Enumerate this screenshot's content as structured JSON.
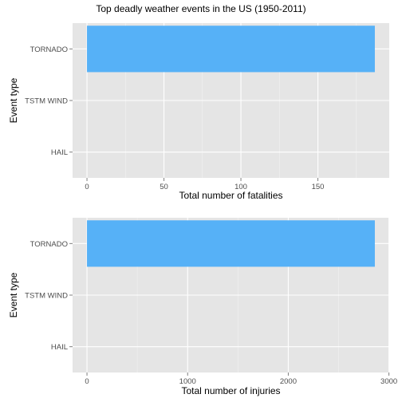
{
  "figure": {
    "title": "Top deadly weather events in the US (1950-2011)"
  },
  "chart_data": [
    {
      "type": "bar",
      "orientation": "horizontal",
      "categories": [
        "TORNADO",
        "TSTM WIND",
        "HAIL"
      ],
      "values": [
        187,
        0,
        0
      ],
      "xlabel": "Total number of fatalities",
      "ylabel": "Event type",
      "xlim": [
        -9.35,
        196.35
      ],
      "xticks": [
        0,
        50,
        100,
        150
      ],
      "xtick_labels": [
        "0",
        "50",
        "100",
        "150"
      ],
      "grid": true,
      "bar_color": "#56B1F7",
      "panel_background": "#E5E5E5"
    },
    {
      "type": "bar",
      "orientation": "horizontal",
      "categories": [
        "TORNADO",
        "TSTM WIND",
        "HAIL"
      ],
      "values": [
        2860,
        0,
        0
      ],
      "xlabel": "Total number of injuries",
      "ylabel": "Event type",
      "xlim": [
        -143,
        3003
      ],
      "xticks": [
        0,
        1000,
        2000,
        3000
      ],
      "xtick_labels": [
        "0",
        "1000",
        "2000",
        "3000"
      ],
      "grid": true,
      "bar_color": "#56B1F7",
      "panel_background": "#E5E5E5"
    }
  ]
}
